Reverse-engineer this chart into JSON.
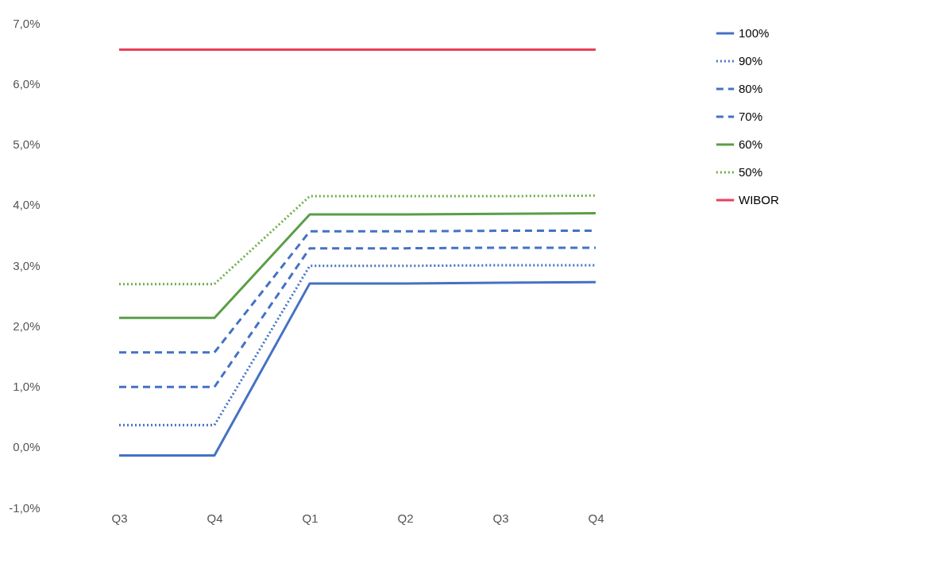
{
  "chart_data": {
    "type": "line",
    "categories": [
      "Q3",
      "Q4",
      "Q1",
      "Q2",
      "Q3",
      "Q4"
    ],
    "ylim": [
      -1,
      7
    ],
    "yticks": [
      {
        "value": -1,
        "label": "-1,0%"
      },
      {
        "value": 0,
        "label": "0,0%"
      },
      {
        "value": 1,
        "label": "1,0%"
      },
      {
        "value": 2,
        "label": "2,0%"
      },
      {
        "value": 3,
        "label": "3,0%"
      },
      {
        "value": 4,
        "label": "4,0%"
      },
      {
        "value": 5,
        "label": "5,0%"
      },
      {
        "value": 6,
        "label": "6,0%"
      },
      {
        "value": 7,
        "label": "7,0%"
      }
    ],
    "grid": false,
    "legend": "right",
    "marker": "none",
    "series": [
      {
        "name": "100%",
        "color": "#4472c4",
        "line_style": "solid",
        "values": [
          -0.14,
          -0.14,
          2.7,
          2.7,
          2.71,
          2.72
        ]
      },
      {
        "name": "90%",
        "color": "#4472c4",
        "line_style": "dotted",
        "values": [
          0.36,
          0.36,
          2.99,
          2.99,
          3.0,
          3.0
        ]
      },
      {
        "name": "80%",
        "color": "#4472c4",
        "line_style": "dashed",
        "values": [
          0.99,
          0.99,
          3.28,
          3.28,
          3.29,
          3.29
        ]
      },
      {
        "name": "70%",
        "color": "#4472c4",
        "line_style": "dashed",
        "values": [
          1.56,
          1.56,
          3.56,
          3.56,
          3.57,
          3.57
        ]
      },
      {
        "name": "60%",
        "color": "#5a9e47",
        "line_style": "solid",
        "values": [
          2.13,
          2.13,
          3.84,
          3.84,
          3.85,
          3.86
        ]
      },
      {
        "name": "50%",
        "color": "#70ad47",
        "line_style": "dotted",
        "values": [
          2.69,
          2.69,
          4.14,
          4.14,
          4.14,
          4.15
        ]
      },
      {
        "name": "WIBOR",
        "color": "#e8405a",
        "line_style": "solid",
        "values": [
          6.56,
          6.56,
          6.56,
          6.56,
          6.56,
          6.56
        ]
      }
    ]
  }
}
